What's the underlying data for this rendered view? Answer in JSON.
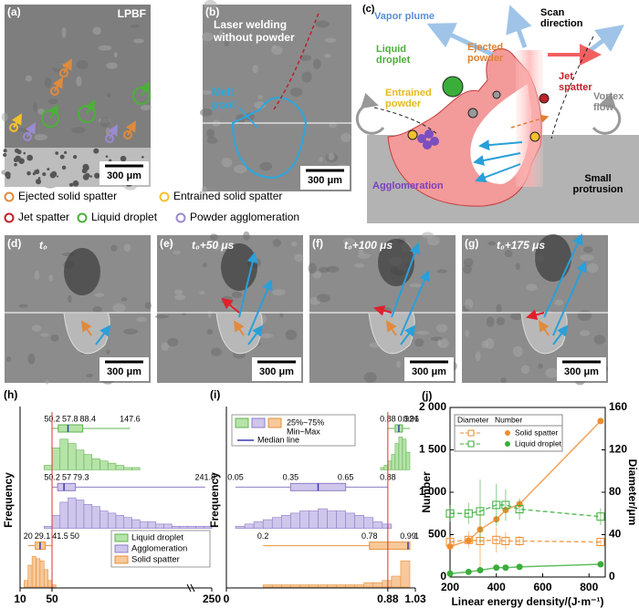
{
  "panels": {
    "a": {
      "label": "(a)",
      "title": "LPBF",
      "scale_bar": "300 μm"
    },
    "b": {
      "label": "(b)",
      "title": "Laser welding without powder",
      "melt_pool": "Melt pool",
      "scale_bar": "300 μm"
    },
    "c": {
      "label": "(c)",
      "vapor_plume": "Vapor plume",
      "scan_direction": "Scan direction",
      "liquid_droplet": "Liquid droplet",
      "ejected_powder": "Ejected powder",
      "jet_spatter": "Jet spatter",
      "entrained_powder": "Entrained powder",
      "vortex_flow": "Vortex flow",
      "agglomeration": "Agglomeration",
      "small_protrusion": "Small protrusion"
    }
  },
  "spatter_legend": [
    {
      "name": "Ejected solid spatter",
      "color": "#e08a3c"
    },
    {
      "name": "Entrained solid spatter",
      "color": "#f2c12e"
    },
    {
      "name": "Jet spatter",
      "color": "#c0202a"
    },
    {
      "name": "Liquid droplet",
      "color": "#4caf3a"
    },
    {
      "name": "Powder agglomeration",
      "color": "#9b8ad0"
    }
  ],
  "sequence": [
    {
      "label": "(d)",
      "time": "t₀",
      "scale_bar": "300 μm"
    },
    {
      "label": "(e)",
      "time": "t₀+50 μs",
      "scale_bar": "300 μm"
    },
    {
      "label": "(f)",
      "time": "t₀+100 μs",
      "scale_bar": "300 μm"
    },
    {
      "label": "(g)",
      "time": "t₀+175 μs",
      "scale_bar": "300 μm"
    }
  ],
  "chart_data": [
    {
      "type": "histogram",
      "label": "(h)",
      "xlabel": "Diameter/μm",
      "ylabel": "Frequency",
      "xlim": [
        10,
        250
      ],
      "xticks": [
        10,
        50,
        250
      ],
      "ref_line": 50,
      "row_ylim": [
        0,
        16
      ],
      "series": [
        {
          "name": "Liquid droplet",
          "color": "#b6e3a8",
          "edge": "#5fb350",
          "bins": [
            40,
            50,
            60,
            70,
            80,
            90,
            100,
            110,
            120,
            130,
            140,
            150,
            160
          ],
          "counts": [
            2,
            10,
            14,
            12,
            9,
            7,
            5,
            4,
            3,
            2,
            1,
            1
          ],
          "box": {
            "min": 50.2,
            "q1": 57.8,
            "q3": 88.4,
            "max": 147.6
          },
          "median": 70
        },
        {
          "name": "Agglomeration",
          "color": "#cfc6ec",
          "edge": "#8e7cc3",
          "bins": [
            40,
            50,
            60,
            70,
            80,
            90,
            100,
            110,
            120,
            130,
            140,
            150,
            160,
            170,
            180,
            190,
            200,
            210,
            220,
            230,
            240,
            250
          ],
          "counts": [
            1,
            6,
            12,
            14,
            13,
            11,
            10,
            8,
            7,
            6,
            5,
            4,
            3,
            3,
            2,
            2,
            1,
            1,
            1,
            1,
            1
          ],
          "box": {
            "min": 50.2,
            "q1": 57,
            "q3": 79.3,
            "max": 241.8
          },
          "median": 65
        },
        {
          "name": "Solid spatter",
          "color": "#f7c99a",
          "edge": "#e6913a",
          "bins": [
            15,
            20,
            25,
            30,
            35,
            40,
            45,
            50,
            55
          ],
          "counts": [
            3,
            10,
            14,
            13,
            12,
            8,
            3,
            1
          ],
          "box": {
            "min": 20,
            "q1": 29.1,
            "q3": 41.5,
            "max": 50
          },
          "median": 35
        }
      ]
    },
    {
      "type": "histogram",
      "label": "(i)",
      "xlabel": "Circularity",
      "ylabel": "Frequency",
      "xlim": [
        0,
        1.03
      ],
      "xticks": [
        0,
        0.88,
        1.03
      ],
      "ref_line": 0.88,
      "row_ylim": [
        0,
        16
      ],
      "legend": [
        "25%~75%",
        "Min~Max",
        "Median line"
      ],
      "series": [
        {
          "name": "Liquid droplet",
          "color": "#b6e3a8",
          "edge": "#5fb350",
          "bins": [
            0.84,
            0.86,
            0.88,
            0.9,
            0.92,
            0.94,
            0.96,
            0.98,
            1.0
          ],
          "counts": [
            1,
            2,
            4,
            7,
            12,
            15,
            14,
            8
          ],
          "box": {
            "min": 0.88,
            "q1": 0.92,
            "q3": 0.96,
            "max": 1
          },
          "median": 0.94
        },
        {
          "name": "Agglomeration",
          "color": "#cfc6ec",
          "edge": "#8e7cc3",
          "bins": [
            0.05,
            0.1,
            0.15,
            0.2,
            0.25,
            0.3,
            0.35,
            0.4,
            0.45,
            0.5,
            0.55,
            0.6,
            0.65,
            0.7,
            0.75,
            0.8,
            0.85,
            0.9
          ],
          "counts": [
            1,
            2,
            3,
            4,
            5,
            6,
            7,
            8,
            8,
            9,
            8,
            8,
            7,
            6,
            5,
            3,
            2
          ],
          "box": {
            "min": 0.05,
            "q1": 0.35,
            "q3": 0.65,
            "max": 0.88
          },
          "median": 0.5
        },
        {
          "name": "Solid spatter",
          "color": "#f7c99a",
          "edge": "#e6913a",
          "bins": [
            0.2,
            0.25,
            0.3,
            0.35,
            0.4,
            0.45,
            0.5,
            0.55,
            0.6,
            0.65,
            0.7,
            0.75,
            0.8,
            0.85,
            0.9,
            0.95,
            1.0
          ],
          "counts": [
            1,
            1,
            1,
            1,
            1,
            1,
            1,
            1,
            1,
            1,
            1,
            2,
            2,
            3,
            5,
            12
          ],
          "box": {
            "min": 0.2,
            "q1": 0.78,
            "median": 0.99,
            "q3": 1
          }
        }
      ]
    },
    {
      "type": "line",
      "label": "(j)",
      "xlabel": "Linear energy density/(J·m⁻¹)",
      "ylabel": "Number",
      "y2label": "Diameter/μm",
      "legend_headers": [
        "Diameter",
        "Number"
      ],
      "xlim": [
        200,
        870
      ],
      "xticks": [
        200,
        400,
        600,
        800
      ],
      "ylim": [
        0,
        2000
      ],
      "yticks": [
        0,
        500,
        {
          "value": 1000,
          "label": "1 000"
        },
        {
          "value": 1500,
          "label": "1 500"
        },
        {
          "value": 2000,
          "label": "2 000"
        }
      ],
      "y2lim": [
        0,
        160
      ],
      "y2ticks": [
        0,
        40,
        80,
        120,
        160
      ],
      "x": [
        200,
        280,
        330,
        400,
        440,
        500,
        850
      ],
      "groups": [
        {
          "name": "Solid spatter",
          "color": "#f08c2e",
          "number": [
            360,
            430,
            560,
            680,
            790,
            860,
            1840
          ],
          "diameter": [
            33,
            35,
            34,
            35,
            34,
            34,
            33
          ],
          "diameter_errors": [
            5,
            8,
            25,
            12,
            8,
            5,
            4
          ]
        },
        {
          "name": "Liquid droplet",
          "color": "#3aae3a",
          "number": [
            40,
            60,
            80,
            110,
            110,
            120,
            150
          ],
          "diameter": [
            60,
            60,
            62,
            68,
            68,
            64,
            57
          ],
          "diameter_errors": [
            8,
            10,
            30,
            20,
            15,
            10,
            8
          ]
        }
      ]
    }
  ]
}
